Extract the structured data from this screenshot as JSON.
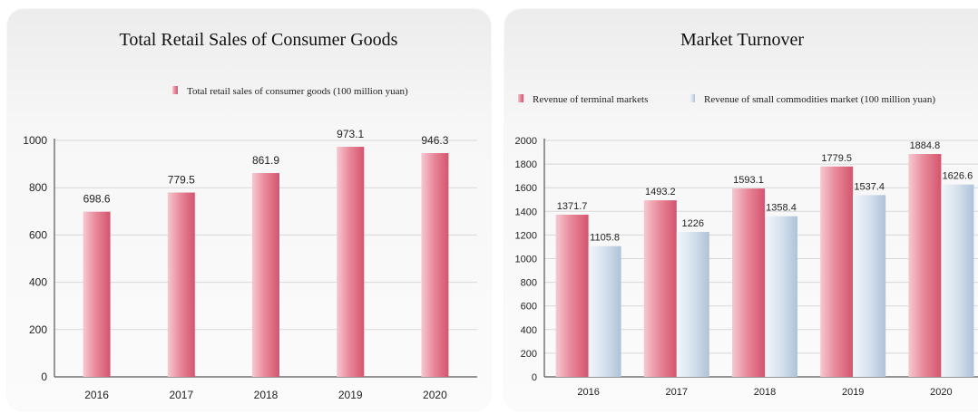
{
  "chart_data": [
    {
      "type": "bar",
      "title": "Total Retail Sales of Consumer Goods",
      "categories": [
        "2016",
        "2017",
        "2018",
        "2019",
        "2020"
      ],
      "series": [
        {
          "name": "Total retail sales of consumer goods (100 million yuan)",
          "values": [
            698.6,
            779.5,
            861.9,
            973.1,
            946.3
          ],
          "labels": [
            "698.6",
            "779.5",
            "861.9",
            "973.1",
            "946.3"
          ]
        }
      ],
      "ylim": [
        0,
        1000
      ],
      "yticks": [
        0,
        200,
        400,
        600,
        800,
        1000
      ],
      "grid": true,
      "legend": "top-right",
      "colors": {
        "bar": "#e0697f"
      }
    },
    {
      "type": "bar",
      "title": "Market Turnover",
      "categories": [
        "2016",
        "2017",
        "2018",
        "2019",
        "2020"
      ],
      "series": [
        {
          "name": "Revenue of terminal markets",
          "values": [
            1371.7,
            1493.2,
            1593.1,
            1779.5,
            1884.8
          ],
          "labels": [
            "1371.7",
            "1493.2",
            "1593.1",
            "1779.5",
            "1884.8"
          ]
        },
        {
          "name": "Revenue of small commodities market (100 million yuan)",
          "values": [
            1105.8,
            1226,
            1358.4,
            1537.4,
            1626.6
          ],
          "labels": [
            "1105.8",
            "1226",
            "1358.4",
            "1537.4",
            "1626.6"
          ]
        }
      ],
      "ylim": [
        0,
        2000
      ],
      "yticks": [
        0,
        200,
        400,
        600,
        800,
        1000,
        1200,
        1400,
        1600,
        1800,
        2000
      ],
      "grid": true,
      "legend": "top",
      "colors": {
        "series1": "#e0697f",
        "series2": "#c3d3e6"
      }
    }
  ]
}
